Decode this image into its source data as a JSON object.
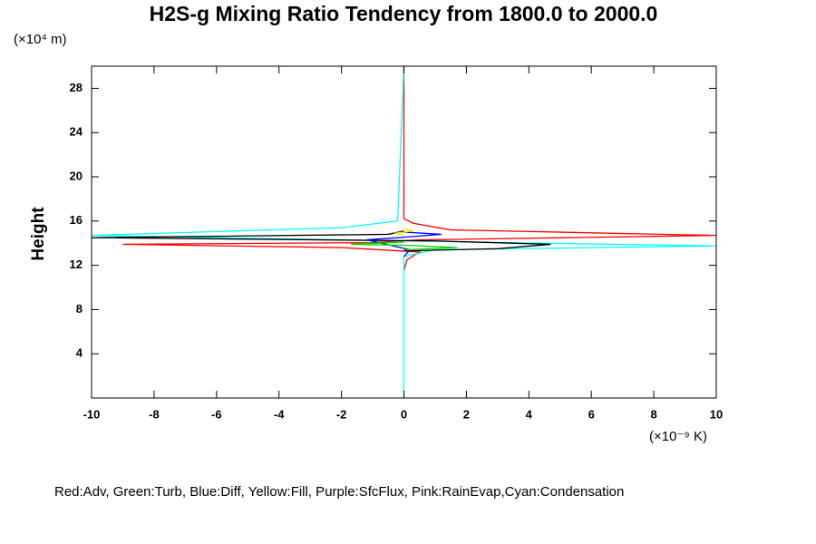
{
  "chart_data": {
    "type": "line",
    "title": "H2S-g Mixing Ratio Tendency from 1800.0 to 2000.0",
    "ylabel": "Height",
    "yunit": "(×10⁴ m)",
    "xlabel": "(×10⁻⁹ K)",
    "note": "Red:Adv, Green:Turb, Blue:Diff, Yellow:Fill, Purple:SfcFlux, Pink:RainEvap,Cyan:Condensation",
    "xlim": [
      -10,
      10
    ],
    "xticks": [
      -10,
      -8,
      -6,
      -4,
      -2,
      0,
      2,
      4,
      6,
      8,
      10
    ],
    "ylim": [
      0,
      30
    ],
    "yticks": [
      4,
      8,
      12,
      16,
      20,
      24,
      28
    ],
    "series": [
      {
        "color": "#ff0000",
        "x": [
          0,
          0.1,
          0.5,
          -2,
          -9,
          -1,
          0.5,
          10,
          1.5,
          0.3,
          0,
          0
        ],
        "values": [
          11.5,
          12.5,
          13.2,
          13.6,
          13.9,
          14.05,
          14.3,
          14.7,
          15.2,
          15.8,
          16.2,
          30
        ]
      },
      {
        "color": "#00ffff",
        "x": [
          0,
          0,
          1,
          10,
          0,
          -10,
          -2,
          -0.2,
          0
        ],
        "values": [
          0,
          12.8,
          13.4,
          13.75,
          14.2,
          14.7,
          15.4,
          16,
          30
        ]
      },
      {
        "color": "#000000",
        "x": [
          0,
          3,
          4.7,
          1,
          -10,
          -0.5,
          0
        ],
        "values": [
          13.3,
          13.5,
          13.9,
          14.2,
          14.5,
          14.8,
          15.1
        ]
      },
      {
        "color": "#0000ff",
        "x": [
          0,
          0.2,
          -1.2,
          0.3,
          1.2,
          0
        ],
        "values": [
          12.8,
          13.4,
          14.3,
          14.6,
          14.8,
          15.0
        ]
      },
      {
        "color": "#00dd00",
        "x": [
          0,
          1.7,
          0.2,
          -1.7,
          0
        ],
        "values": [
          13.4,
          13.6,
          13.8,
          13.9,
          14.1
        ]
      },
      {
        "color": "#e6e600",
        "x": [
          0,
          -0.3,
          0.3,
          0
        ],
        "values": [
          14.7,
          14.9,
          15.1,
          15.3
        ]
      }
    ]
  }
}
